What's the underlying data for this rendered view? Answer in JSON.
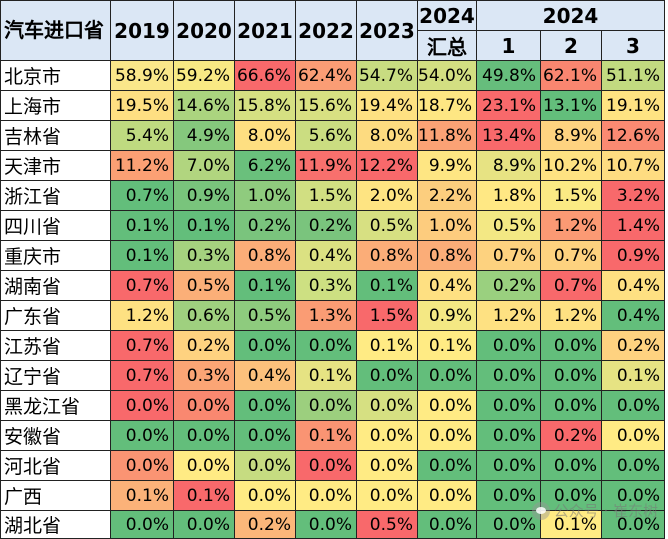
{
  "chart_data": {
    "type": "table",
    "corner_label": "汽车进口省",
    "columns": [
      "2019",
      "2020",
      "2021",
      "2022",
      "2023",
      "2024 汇总",
      "1",
      "2",
      "3"
    ],
    "header_groups": {
      "years": [
        "2019",
        "2020",
        "2021",
        "2022",
        "2023"
      ],
      "total": {
        "top": "2024",
        "bottom": "汇总"
      },
      "months_group": "2024",
      "months": [
        "1",
        "2",
        "3"
      ]
    },
    "rows": [
      {
        "region": "北京市",
        "values": [
          "58.9%",
          "59.2%",
          "66.6%",
          "62.4%",
          "54.7%",
          "54.0%",
          "49.8%",
          "62.1%",
          "51.1%"
        ],
        "colors": [
          "#fae78a",
          "#f8e984",
          "#f8696b",
          "#fa9d75",
          "#c8dc81",
          "#d3df82",
          "#66bd7c",
          "#f98670",
          "#c2da80"
        ]
      },
      {
        "region": "上海市",
        "values": [
          "19.5%",
          "14.6%",
          "15.8%",
          "15.6%",
          "19.4%",
          "18.7%",
          "23.1%",
          "13.1%",
          "19.1%"
        ],
        "colors": [
          "#fedf82",
          "#abd47f",
          "#d5e082",
          "#d8e082",
          "#fee182",
          "#fee683",
          "#f8696b",
          "#63be7b",
          "#fee382"
        ]
      },
      {
        "region": "吉林省",
        "values": [
          "5.4%",
          "4.9%",
          "8.0%",
          "5.6%",
          "8.0%",
          "11.8%",
          "13.4%",
          "8.9%",
          "12.6%"
        ],
        "colors": [
          "#bfda80",
          "#85c87d",
          "#fedf81",
          "#cbdd81",
          "#fddb80",
          "#fba275",
          "#f8696b",
          "#fed380",
          "#fa8a72"
        ]
      },
      {
        "region": "天津市",
        "values": [
          "11.2%",
          "7.0%",
          "6.2%",
          "11.9%",
          "12.2%",
          "9.9%",
          "8.9%",
          "10.2%",
          "10.7%"
        ],
        "colors": [
          "#fba074",
          "#b1d57f",
          "#6ac07c",
          "#f8706d",
          "#f8696b",
          "#fee683",
          "#e7e383",
          "#fee282",
          "#fedc81"
        ]
      },
      {
        "region": "浙江省",
        "values": [
          "0.7%",
          "0.9%",
          "1.0%",
          "1.5%",
          "2.0%",
          "2.2%",
          "1.8%",
          "1.5%",
          "3.2%"
        ],
        "colors": [
          "#63be7b",
          "#79c47c",
          "#8fcb7e",
          "#d1df82",
          "#fee482",
          "#fcce7e",
          "#ffe884",
          "#fbea84",
          "#f8696b"
        ]
      },
      {
        "region": "四川省",
        "values": [
          "0.1%",
          "0.1%",
          "0.2%",
          "0.2%",
          "0.5%",
          "1.0%",
          "0.5%",
          "1.2%",
          "1.4%"
        ],
        "colors": [
          "#63be7b",
          "#63be7b",
          "#7ac47d",
          "#7ac47d",
          "#d7e082",
          "#fdcc7e",
          "#f3e884",
          "#fb9a74",
          "#f8696b"
        ]
      },
      {
        "region": "重庆市",
        "values": [
          "0.1%",
          "0.3%",
          "0.8%",
          "0.4%",
          "0.8%",
          "0.8%",
          "0.7%",
          "0.7%",
          "0.9%"
        ],
        "colors": [
          "#63be7b",
          "#a5d27f",
          "#fbad78",
          "#dbe182",
          "#fbad78",
          "#fbad78",
          "#fdd27f",
          "#fdd27f",
          "#f8696b"
        ]
      },
      {
        "region": "湖南省",
        "values": [
          "0.7%",
          "0.5%",
          "0.1%",
          "0.3%",
          "0.1%",
          "0.4%",
          "0.2%",
          "0.7%",
          "0.4%"
        ],
        "colors": [
          "#f8696b",
          "#fbaf78",
          "#63be7b",
          "#cde082",
          "#63be7b",
          "#fee082",
          "#9ad07f",
          "#f8696b",
          "#fee082"
        ]
      },
      {
        "region": "广东省",
        "values": [
          "1.2%",
          "0.6%",
          "0.5%",
          "1.3%",
          "1.5%",
          "0.9%",
          "1.2%",
          "1.2%",
          "0.4%"
        ],
        "colors": [
          "#fee182",
          "#9fd07f",
          "#8ecb7e",
          "#fa9c74",
          "#f8696b",
          "#f4e884",
          "#fee182",
          "#fee182",
          "#63be7b"
        ]
      },
      {
        "region": "江苏省",
        "values": [
          "0.7%",
          "0.2%",
          "0.0%",
          "0.0%",
          "0.1%",
          "0.1%",
          "0.0%",
          "0.0%",
          "0.2%"
        ],
        "colors": [
          "#f8696b",
          "#fed280",
          "#63be7b",
          "#63be7b",
          "#ffeb84",
          "#ffeb84",
          "#63be7b",
          "#63be7b",
          "#fed280"
        ]
      },
      {
        "region": "辽宁省",
        "values": [
          "0.7%",
          "0.3%",
          "0.4%",
          "0.1%",
          "0.0%",
          "0.0%",
          "0.0%",
          "0.0%",
          "0.1%"
        ],
        "colors": [
          "#f8696b",
          "#fba575",
          "#fcc17c",
          "#e6e383",
          "#63be7b",
          "#63be7b",
          "#63be7b",
          "#63be7b",
          "#e6e383"
        ]
      },
      {
        "region": "黑龙江省",
        "values": [
          "0.0%",
          "0.0%",
          "0.0%",
          "0.0%",
          "0.0%",
          "0.0%",
          "0.0%",
          "0.0%",
          "0.0%"
        ],
        "colors": [
          "#f8696b",
          "#f98870",
          "#63be7b",
          "#9ccf7e",
          "#d6e082",
          "#ffeb84",
          "#63be7b",
          "#63be7b",
          "#63be7b"
        ]
      },
      {
        "region": "安徽省",
        "values": [
          "0.0%",
          "0.0%",
          "0.0%",
          "0.1%",
          "0.0%",
          "0.0%",
          "0.0%",
          "0.2%",
          "0.0%"
        ],
        "colors": [
          "#63be7b",
          "#63be7b",
          "#63be7b",
          "#fa9473",
          "#ffeb84",
          "#ffeb84",
          "#63be7b",
          "#f8696b",
          "#ffeb84"
        ]
      },
      {
        "region": "河北省",
        "values": [
          "0.0%",
          "0.0%",
          "0.0%",
          "0.0%",
          "0.0%",
          "0.0%",
          "0.0%",
          "0.0%",
          "0.0%"
        ],
        "colors": [
          "#fa9473",
          "#ffeb84",
          "#c6dc81",
          "#f8696b",
          "#ffeb84",
          "#63be7b",
          "#63be7b",
          "#63be7b",
          "#63be7b"
        ]
      },
      {
        "region": "广西",
        "values": [
          "0.1%",
          "0.1%",
          "0.0%",
          "0.0%",
          "0.0%",
          "0.0%",
          "0.0%",
          "0.0%",
          "0.0%"
        ],
        "colors": [
          "#fbb279",
          "#f8696b",
          "#ffeb84",
          "#ffeb84",
          "#ffeb84",
          "#ffeb84",
          "#63be7b",
          "#63be7b",
          "#63be7b"
        ]
      },
      {
        "region": "湖北省",
        "values": [
          "0.0%",
          "0.0%",
          "0.2%",
          "0.0%",
          "0.5%",
          "0.0%",
          "0.0%",
          "0.1%",
          "0.0%"
        ],
        "colors": [
          "#63be7b",
          "#63be7b",
          "#fbb77a",
          "#63be7b",
          "#f8696b",
          "#63be7b",
          "#63be7b",
          "#ffeb84",
          "#63be7b"
        ]
      }
    ],
    "header_bg": "#dbe7f5"
  },
  "watermark": "公众号 · 崔东树"
}
